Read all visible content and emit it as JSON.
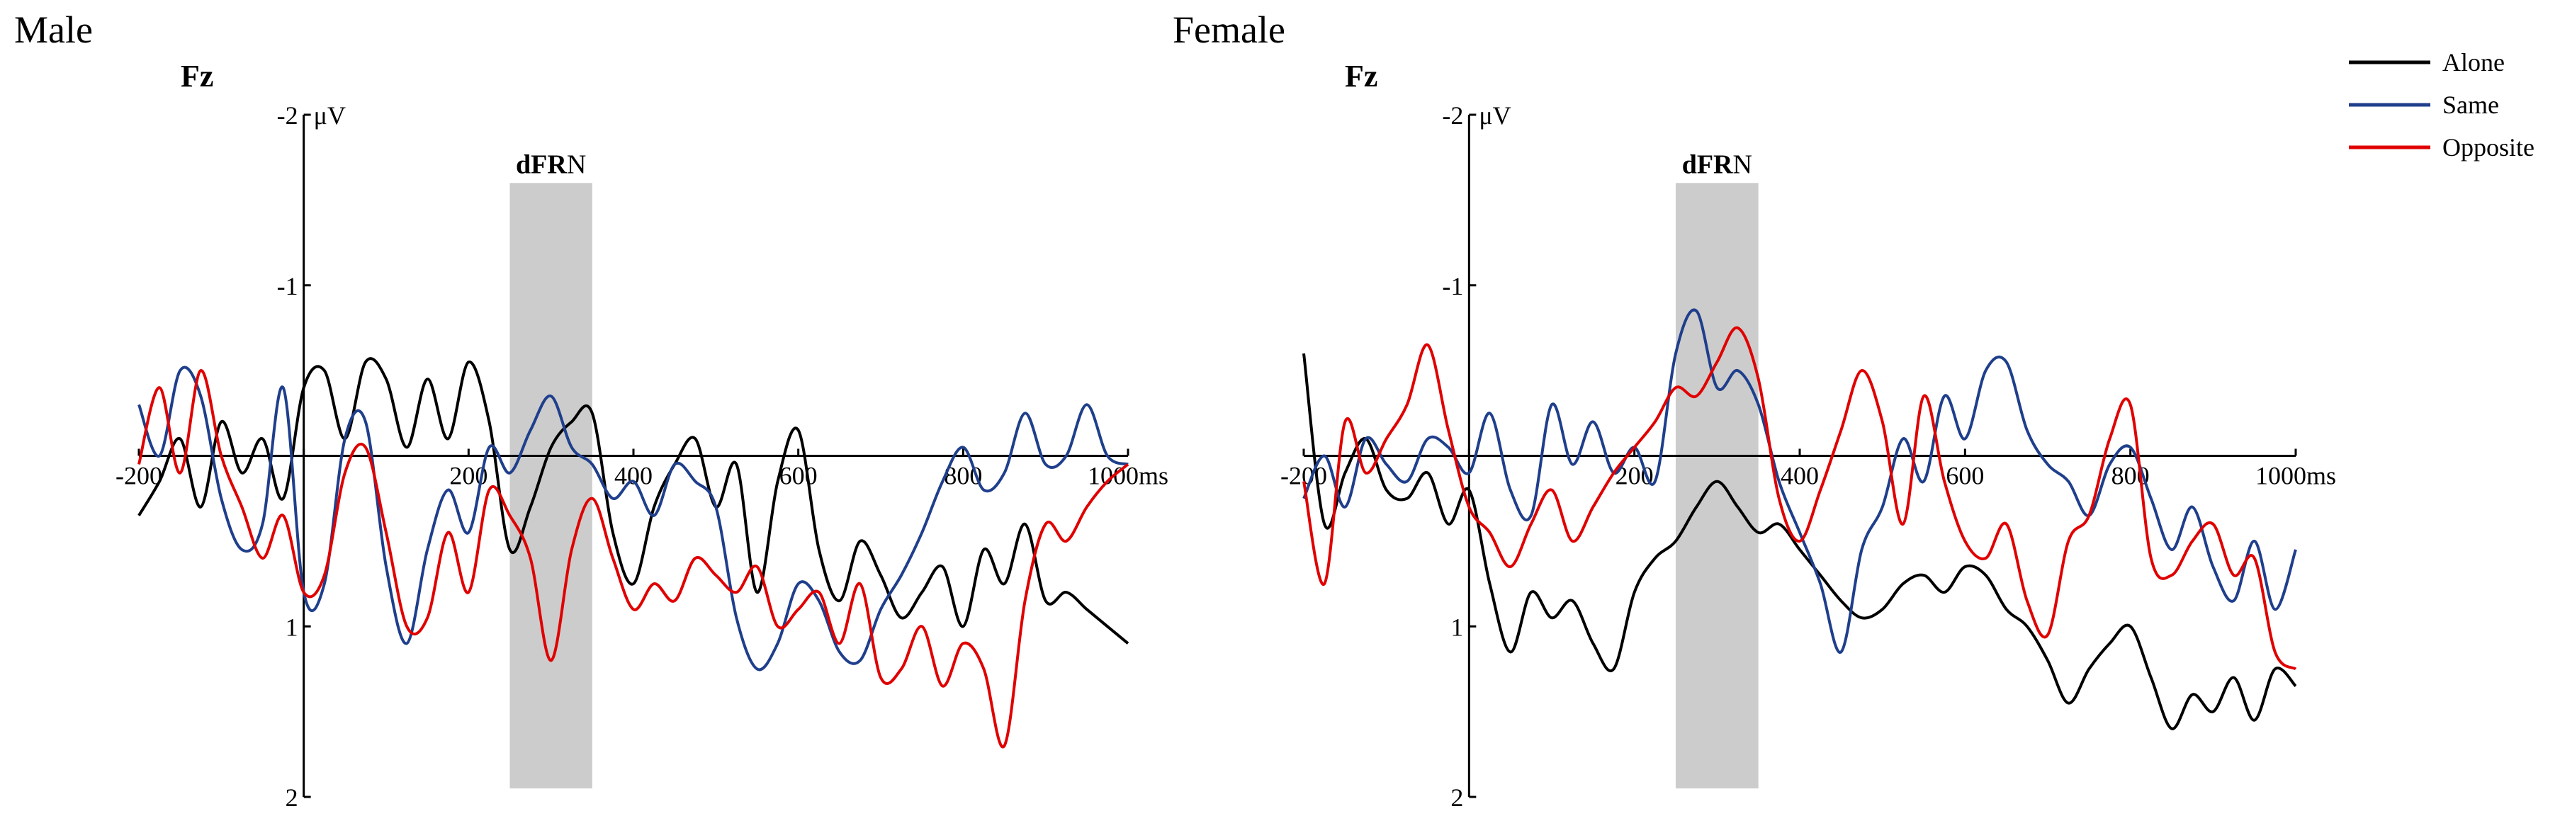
{
  "colors": {
    "Alone": "#000000",
    "Same": "#1f3f8c",
    "Opposite": "#e00000",
    "window": "#cccccc"
  },
  "legend": {
    "position": "top-right",
    "entries": [
      "Alone",
      "Same",
      "Opposite"
    ]
  },
  "shared": {
    "channel": "Fz",
    "window_label_bold": "dFR",
    "window_label_rest": "N",
    "y_unit": "μV",
    "x_unit": "ms",
    "y_tick_labels": [
      "-2",
      "-1",
      "1",
      "2"
    ],
    "x_tick_labels": [
      "-200",
      "200",
      "400",
      "600",
      "800",
      "1000"
    ]
  },
  "chart_data": [
    {
      "type": "line",
      "panel_title": "Male",
      "channel": "Fz",
      "xlim": [
        -200,
        1000
      ],
      "ylim": [
        -2,
        2
      ],
      "y_inverted": true,
      "highlight_window": {
        "label": "dFRN",
        "x": [
          250,
          350
        ]
      },
      "series": [
        {
          "name": "Alone",
          "x": [
            -200,
            -175,
            -150,
            -125,
            -100,
            -75,
            -50,
            -25,
            0,
            25,
            50,
            75,
            100,
            125,
            150,
            175,
            200,
            225,
            250,
            275,
            300,
            325,
            350,
            375,
            400,
            425,
            450,
            475,
            500,
            525,
            550,
            575,
            600,
            625,
            650,
            675,
            700,
            725,
            750,
            775,
            800,
            825,
            850,
            875,
            900,
            925,
            950,
            975,
            1000
          ],
          "y": [
            0.35,
            0.15,
            -0.1,
            0.3,
            -0.2,
            0.1,
            -0.1,
            0.25,
            -0.4,
            -0.5,
            -0.1,
            -0.55,
            -0.45,
            -0.05,
            -0.45,
            -0.1,
            -0.55,
            -0.2,
            0.55,
            0.3,
            -0.05,
            -0.2,
            -0.25,
            0.45,
            0.75,
            0.3,
            0.05,
            -0.1,
            0.3,
            0.05,
            0.8,
            0.15,
            -0.15,
            0.55,
            0.85,
            0.5,
            0.7,
            0.95,
            0.8,
            0.65,
            1.0,
            0.55,
            0.75,
            0.4,
            0.85,
            0.8,
            0.9,
            1.0,
            1.1
          ]
        },
        {
          "name": "Same",
          "x": [
            -200,
            -175,
            -150,
            -125,
            -100,
            -75,
            -50,
            -25,
            0,
            25,
            50,
            75,
            100,
            125,
            150,
            175,
            200,
            225,
            250,
            275,
            300,
            325,
            350,
            375,
            400,
            425,
            450,
            475,
            500,
            525,
            550,
            575,
            600,
            625,
            650,
            675,
            700,
            725,
            750,
            775,
            800,
            825,
            850,
            875,
            900,
            925,
            950,
            975,
            1000
          ],
          "y": [
            -0.3,
            0.0,
            -0.5,
            -0.35,
            0.25,
            0.55,
            0.4,
            -0.4,
            0.8,
            0.75,
            -0.1,
            -0.2,
            0.65,
            1.1,
            0.55,
            0.2,
            0.45,
            -0.05,
            0.1,
            -0.15,
            -0.35,
            -0.05,
            0.05,
            0.25,
            0.15,
            0.35,
            0.05,
            0.15,
            0.3,
            0.95,
            1.25,
            1.1,
            0.75,
            0.85,
            1.15,
            1.2,
            0.9,
            0.7,
            0.45,
            0.15,
            -0.05,
            0.2,
            0.1,
            -0.25,
            0.05,
            0.0,
            -0.3,
            0.0,
            0.05
          ]
        },
        {
          "name": "Opposite",
          "x": [
            -200,
            -175,
            -150,
            -125,
            -100,
            -75,
            -50,
            -25,
            0,
            25,
            50,
            75,
            100,
            125,
            150,
            175,
            200,
            225,
            250,
            275,
            300,
            325,
            350,
            375,
            400,
            425,
            450,
            475,
            500,
            525,
            550,
            575,
            600,
            625,
            650,
            675,
            700,
            725,
            750,
            775,
            800,
            825,
            850,
            875,
            900,
            925,
            950,
            975,
            1000
          ],
          "y": [
            0.05,
            -0.4,
            0.1,
            -0.5,
            0.0,
            0.3,
            0.6,
            0.35,
            0.8,
            0.7,
            0.1,
            -0.05,
            0.45,
            1.0,
            0.95,
            0.45,
            0.8,
            0.2,
            0.35,
            0.6,
            1.2,
            0.55,
            0.25,
            0.6,
            0.9,
            0.75,
            0.85,
            0.6,
            0.7,
            0.8,
            0.65,
            1.0,
            0.9,
            0.8,
            1.1,
            0.75,
            1.3,
            1.25,
            1.0,
            1.35,
            1.1,
            1.25,
            1.7,
            0.85,
            0.4,
            0.5,
            0.3,
            0.15,
            0.05
          ]
        }
      ]
    },
    {
      "type": "line",
      "panel_title": "Female",
      "channel": "Fz",
      "xlim": [
        -200,
        1000
      ],
      "ylim": [
        -2,
        2
      ],
      "y_inverted": true,
      "highlight_window": {
        "label": "dFRN",
        "x": [
          250,
          350
        ]
      },
      "series": [
        {
          "name": "Alone",
          "x": [
            -200,
            -175,
            -150,
            -125,
            -100,
            -75,
            -50,
            -25,
            0,
            25,
            50,
            75,
            100,
            125,
            150,
            175,
            200,
            225,
            250,
            275,
            300,
            325,
            350,
            375,
            400,
            425,
            450,
            475,
            500,
            525,
            550,
            575,
            600,
            625,
            650,
            675,
            700,
            725,
            750,
            775,
            800,
            825,
            850,
            875,
            900,
            925,
            950,
            975,
            1000
          ],
          "y": [
            -0.6,
            0.4,
            0.1,
            -0.1,
            0.2,
            0.25,
            0.1,
            0.4,
            0.2,
            0.75,
            1.15,
            0.8,
            0.95,
            0.85,
            1.1,
            1.25,
            0.8,
            0.6,
            0.5,
            0.3,
            0.15,
            0.3,
            0.45,
            0.4,
            0.55,
            0.7,
            0.85,
            0.95,
            0.9,
            0.75,
            0.7,
            0.8,
            0.65,
            0.7,
            0.9,
            1.0,
            1.2,
            1.45,
            1.25,
            1.1,
            1.0,
            1.3,
            1.6,
            1.4,
            1.5,
            1.3,
            1.55,
            1.25,
            1.35
          ]
        },
        {
          "name": "Same",
          "x": [
            -200,
            -175,
            -150,
            -125,
            -100,
            -75,
            -50,
            -25,
            0,
            25,
            50,
            75,
            100,
            125,
            150,
            175,
            200,
            225,
            250,
            275,
            300,
            325,
            350,
            375,
            400,
            425,
            450,
            475,
            500,
            525,
            550,
            575,
            600,
            625,
            650,
            675,
            700,
            725,
            750,
            775,
            800,
            825,
            850,
            875,
            900,
            925,
            950,
            975,
            1000
          ],
          "y": [
            0.25,
            0.0,
            0.3,
            -0.1,
            0.05,
            0.15,
            -0.1,
            -0.05,
            0.1,
            -0.25,
            0.2,
            0.35,
            -0.3,
            0.05,
            -0.2,
            0.1,
            -0.05,
            0.15,
            -0.6,
            -0.85,
            -0.4,
            -0.5,
            -0.3,
            0.15,
            0.45,
            0.75,
            1.15,
            0.55,
            0.3,
            -0.1,
            0.15,
            -0.35,
            -0.1,
            -0.5,
            -0.55,
            -0.15,
            0.05,
            0.15,
            0.35,
            0.05,
            -0.05,
            0.25,
            0.55,
            0.3,
            0.65,
            0.85,
            0.5,
            0.9,
            0.55
          ]
        },
        {
          "name": "Opposite",
          "x": [
            -200,
            -175,
            -150,
            -125,
            -100,
            -75,
            -50,
            -25,
            0,
            25,
            50,
            75,
            100,
            125,
            150,
            175,
            200,
            225,
            250,
            275,
            300,
            325,
            350,
            375,
            400,
            425,
            450,
            475,
            500,
            525,
            550,
            575,
            600,
            625,
            650,
            675,
            700,
            725,
            750,
            775,
            800,
            825,
            850,
            875,
            900,
            925,
            950,
            975,
            1000
          ],
          "y": [
            0.15,
            0.75,
            -0.2,
            0.1,
            -0.1,
            -0.3,
            -0.65,
            -0.15,
            0.3,
            0.45,
            0.65,
            0.4,
            0.2,
            0.5,
            0.3,
            0.1,
            -0.05,
            -0.2,
            -0.4,
            -0.35,
            -0.55,
            -0.75,
            -0.45,
            0.25,
            0.5,
            0.2,
            -0.15,
            -0.5,
            -0.2,
            0.4,
            -0.35,
            0.15,
            0.5,
            0.6,
            0.4,
            0.85,
            1.05,
            0.5,
            0.35,
            -0.1,
            -0.3,
            0.6,
            0.7,
            0.5,
            0.4,
            0.7,
            0.6,
            1.15,
            1.25
          ]
        }
      ]
    }
  ]
}
